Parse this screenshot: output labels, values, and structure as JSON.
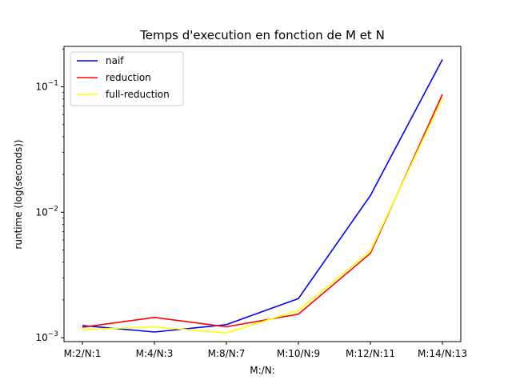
{
  "chart_data": {
    "type": "line",
    "title": "Temps d'execution en fonction de M et N",
    "xlabel": "M:/N:",
    "ylabel": "runtime (log(seconds))",
    "categories": [
      "M:2/N:1",
      "M:4/N:3",
      "M:8/N:7",
      "M:10/N:9",
      "M:12/N:11",
      "M:14/N:13"
    ],
    "y_scale": "log",
    "ylim": [
      0.00093,
      0.21
    ],
    "y_ticks": [
      {
        "value": 0.001,
        "base": "10",
        "exp": "−3"
      },
      {
        "value": 0.01,
        "base": "10",
        "exp": "−2"
      },
      {
        "value": 0.1,
        "base": "10",
        "exp": "−1"
      }
    ],
    "grid": false,
    "legend_position": "upper left",
    "series": [
      {
        "name": "naif",
        "color": "#0000ff",
        "values": [
          0.00125,
          0.00111,
          0.00127,
          0.00205,
          0.0136,
          0.165
        ]
      },
      {
        "name": "reduction",
        "color": "#ff0000",
        "values": [
          0.00121,
          0.00145,
          0.00122,
          0.00154,
          0.0047,
          0.087
        ]
      },
      {
        "name": "full-reduction",
        "color": "#ffff00",
        "values": [
          0.00116,
          0.00122,
          0.00109,
          0.00165,
          0.0049,
          0.081
        ]
      }
    ]
  }
}
